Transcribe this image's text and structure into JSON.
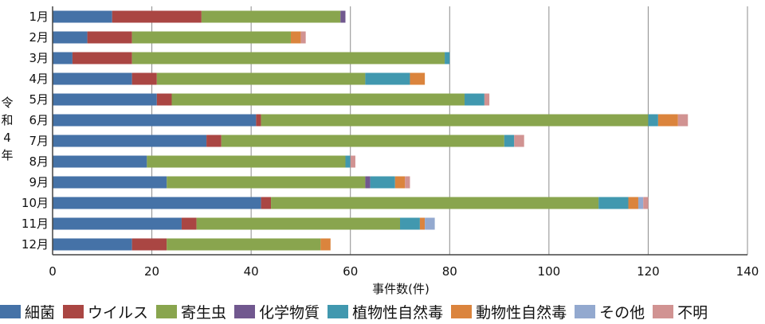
{
  "chart_data": {
    "type": "bar",
    "orientation": "horizontal",
    "stacked": true,
    "title": "",
    "ylabel": "令和4年",
    "xlabel": "事件数(件)",
    "xlim": [
      0,
      140
    ],
    "xticks": [
      0,
      20,
      40,
      60,
      80,
      100,
      120,
      140
    ],
    "grid": true,
    "legend_position": "bottom",
    "categories": [
      "1月",
      "2月",
      "3月",
      "4月",
      "5月",
      "6月",
      "7月",
      "8月",
      "9月",
      "10月",
      "11月",
      "12月"
    ],
    "series": [
      {
        "name": "細菌",
        "color": "#4572A7",
        "values": [
          12,
          7,
          4,
          16,
          21,
          41,
          31,
          19,
          23,
          42,
          26,
          16
        ]
      },
      {
        "name": "ウイルス",
        "color": "#AA4643",
        "values": [
          18,
          9,
          12,
          5,
          3,
          1,
          3,
          0,
          0,
          2,
          3,
          7
        ]
      },
      {
        "name": "寄生虫",
        "color": "#89A54E",
        "values": [
          28,
          32,
          63,
          42,
          59,
          78,
          57,
          40,
          40,
          66,
          41,
          31
        ]
      },
      {
        "name": "化学物質",
        "color": "#71588F",
        "values": [
          1,
          0,
          0,
          0,
          0,
          0,
          0,
          0,
          1,
          0,
          0,
          0
        ]
      },
      {
        "name": "植物性自然毒",
        "color": "#4198AF",
        "values": [
          0,
          0,
          1,
          9,
          4,
          2,
          2,
          1,
          5,
          6,
          4,
          0
        ]
      },
      {
        "name": "動物性自然毒",
        "color": "#DB843D",
        "values": [
          0,
          2,
          0,
          3,
          0,
          4,
          0,
          0,
          2,
          2,
          1,
          2
        ]
      },
      {
        "name": "その他",
        "color": "#93A9CF",
        "values": [
          0,
          0,
          0,
          0,
          0,
          0,
          0,
          0,
          0,
          1,
          2,
          0
        ]
      },
      {
        "name": "不明",
        "color": "#D19392",
        "values": [
          0,
          1,
          0,
          0,
          1,
          2,
          2,
          1,
          1,
          1,
          0,
          0
        ]
      }
    ]
  }
}
